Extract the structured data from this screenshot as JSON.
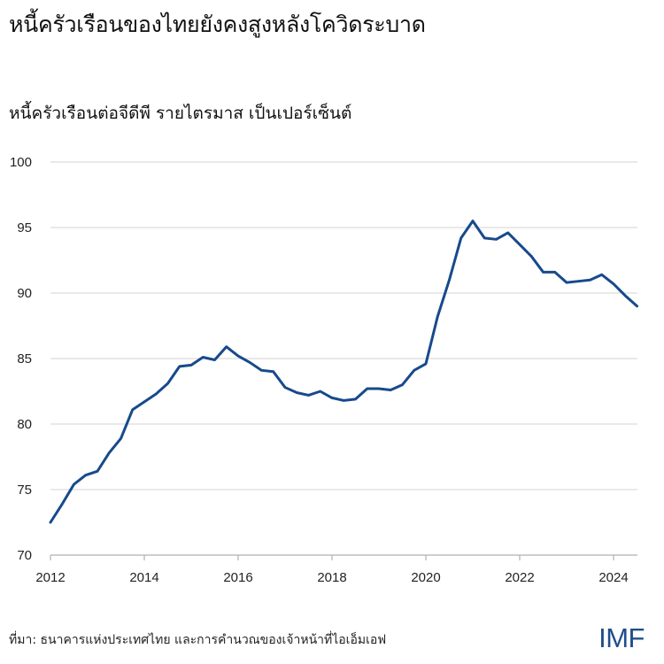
{
  "header": {
    "title": "หนี้ครัวเรือนของไทยยังคงสูงหลังโควิดระบาด",
    "subtitle": "หนี้ครัวเรือนต่อจีดีพี รายไตรมาส เป็นเปอร์เซ็นต์"
  },
  "footer": {
    "source": "ที่มา: ธนาคารแห่งประเทศไทย และการคำนวณของเจ้าหน้าที่ไอเอ็มเอฟ",
    "logo": "IMF"
  },
  "colors": {
    "line": "#174a8b",
    "grid": "#dcdcdc",
    "axis": "#b0b0b0",
    "logo": "#1f4e8c"
  },
  "chart_data": {
    "type": "line",
    "title": "หนี้ครัวเรือนของไทยยังคงสูงหลังโควิดระบาด",
    "subtitle": "หนี้ครัวเรือนต่อจีดีพี รายไตรมาส เป็นเปอร์เซ็นต์",
    "xlabel": "",
    "ylabel": "",
    "ylim": [
      70,
      100
    ],
    "yticks": [
      70,
      75,
      80,
      85,
      90,
      95,
      100
    ],
    "xticks": [
      "2012",
      "2014",
      "2016",
      "2018",
      "2020",
      "2022",
      "2024"
    ],
    "grid": true,
    "legend": null,
    "x": [
      "2012Q1",
      "2012Q2",
      "2012Q3",
      "2012Q4",
      "2013Q1",
      "2013Q2",
      "2013Q3",
      "2013Q4",
      "2014Q1",
      "2014Q2",
      "2014Q3",
      "2014Q4",
      "2015Q1",
      "2015Q2",
      "2015Q3",
      "2015Q4",
      "2016Q1",
      "2016Q2",
      "2016Q3",
      "2016Q4",
      "2017Q1",
      "2017Q2",
      "2017Q3",
      "2017Q4",
      "2018Q1",
      "2018Q2",
      "2018Q3",
      "2018Q4",
      "2019Q1",
      "2019Q2",
      "2019Q3",
      "2019Q4",
      "2020Q1",
      "2020Q2",
      "2020Q3",
      "2020Q4",
      "2021Q1",
      "2021Q2",
      "2021Q3",
      "2021Q4",
      "2022Q1",
      "2022Q2",
      "2022Q3",
      "2022Q4",
      "2023Q1",
      "2023Q2",
      "2023Q3",
      "2023Q4",
      "2024Q1",
      "2024Q2",
      "2024Q3"
    ],
    "series": [
      {
        "name": "Household debt to GDP (%)",
        "values": [
          72.5,
          73.9,
          75.4,
          76.1,
          76.4,
          77.8,
          78.9,
          81.1,
          81.7,
          82.3,
          83.1,
          84.4,
          84.5,
          85.1,
          84.9,
          85.9,
          85.2,
          84.7,
          84.1,
          84.0,
          82.8,
          82.4,
          82.2,
          82.5,
          82.0,
          81.8,
          81.9,
          82.7,
          82.7,
          82.6,
          83.0,
          84.1,
          84.6,
          88.2,
          91.0,
          94.2,
          95.5,
          94.2,
          94.1,
          94.6,
          93.7,
          92.8,
          91.6,
          91.6,
          90.8,
          90.9,
          91.0,
          91.4,
          90.7,
          89.8,
          89.0
        ]
      }
    ]
  }
}
